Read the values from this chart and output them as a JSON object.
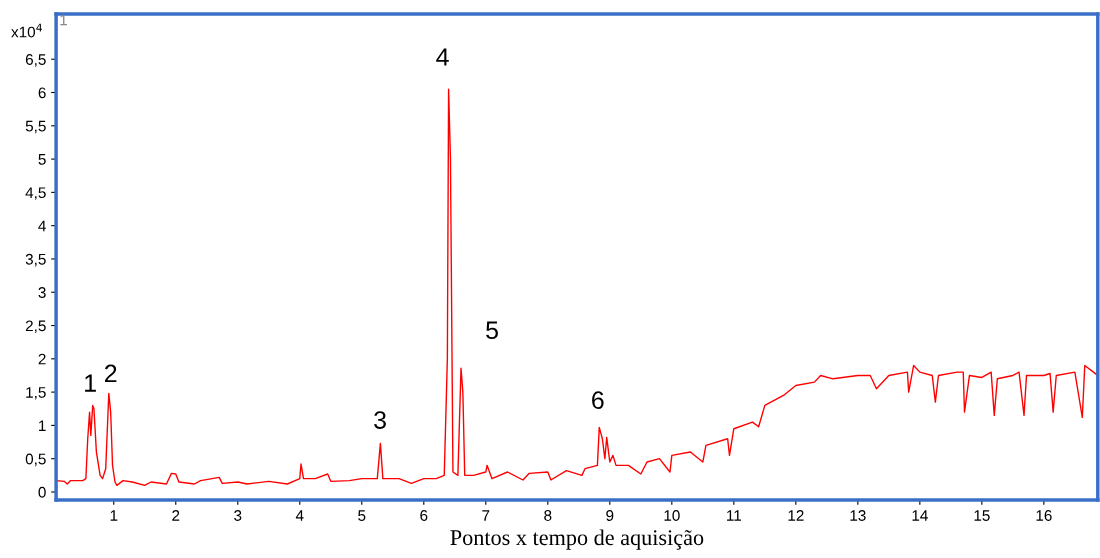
{
  "chart_data": {
    "type": "line",
    "xlabel": "Pontos x tempo de aquisição",
    "x": [
      0.08,
      0.2,
      0.25,
      0.3,
      0.5,
      0.55,
      0.58,
      0.61,
      0.63,
      0.66,
      0.68,
      0.72,
      0.78,
      0.82,
      0.87,
      0.92,
      0.95,
      0.98,
      1.02,
      1.05,
      1.15,
      1.3,
      1.5,
      1.6,
      1.85,
      1.93,
      2.0,
      2.05,
      2.3,
      2.4,
      2.7,
      2.75,
      3.0,
      3.15,
      3.5,
      3.8,
      4.0,
      4.02,
      4.06,
      4.25,
      4.45,
      4.5,
      4.8,
      5.0,
      5.25,
      5.3,
      5.34,
      5.6,
      5.8,
      6.0,
      6.2,
      6.33,
      6.38,
      6.4,
      6.43,
      6.47,
      6.55,
      6.6,
      6.63,
      6.66,
      6.8,
      7.0,
      7.02,
      7.1,
      7.35,
      7.6,
      7.7,
      8.0,
      8.05,
      8.3,
      8.55,
      8.6,
      8.8,
      8.83,
      8.88,
      8.92,
      8.95,
      9.0,
      9.05,
      9.1,
      9.3,
      9.5,
      9.6,
      9.8,
      9.97,
      10.0,
      10.3,
      10.5,
      10.55,
      10.9,
      10.93,
      11.0,
      11.3,
      11.4,
      11.5,
      11.8,
      12.0,
      12.3,
      12.4,
      12.6,
      13.0,
      13.2,
      13.3,
      13.5,
      13.8,
      13.82,
      13.9,
      14.0,
      14.2,
      14.25,
      14.3,
      14.6,
      14.7,
      14.72,
      14.8,
      15.0,
      15.15,
      15.2,
      15.25,
      15.5,
      15.6,
      15.68,
      15.72,
      16.0,
      16.1,
      16.15,
      16.2,
      16.5,
      16.62,
      16.66,
      16.8,
      16.87
    ],
    "series": [
      {
        "color": "#ff0000",
        "values": [
          0.17,
          0.16,
          0.12,
          0.17,
          0.17,
          0.2,
          0.8,
          1.2,
          0.85,
          1.3,
          1.25,
          0.6,
          0.25,
          0.2,
          0.35,
          1.48,
          1.2,
          0.4,
          0.15,
          0.1,
          0.17,
          0.15,
          0.1,
          0.15,
          0.12,
          0.28,
          0.27,
          0.15,
          0.12,
          0.17,
          0.22,
          0.13,
          0.15,
          0.12,
          0.16,
          0.12,
          0.2,
          0.42,
          0.2,
          0.2,
          0.27,
          0.16,
          0.17,
          0.2,
          0.2,
          0.73,
          0.2,
          0.2,
          0.13,
          0.2,
          0.2,
          0.25,
          2.0,
          6.05,
          5.0,
          0.3,
          0.25,
          1.86,
          1.5,
          0.25,
          0.25,
          0.3,
          0.4,
          0.2,
          0.3,
          0.18,
          0.28,
          0.3,
          0.18,
          0.32,
          0.25,
          0.35,
          0.4,
          0.97,
          0.8,
          0.5,
          0.82,
          0.45,
          0.55,
          0.4,
          0.4,
          0.27,
          0.45,
          0.5,
          0.3,
          0.55,
          0.6,
          0.45,
          0.7,
          0.8,
          0.55,
          0.95,
          1.05,
          0.98,
          1.3,
          1.45,
          1.6,
          1.65,
          1.75,
          1.7,
          1.75,
          1.75,
          1.55,
          1.75,
          1.8,
          1.5,
          1.9,
          1.8,
          1.75,
          1.35,
          1.75,
          1.8,
          1.8,
          1.2,
          1.75,
          1.72,
          1.8,
          1.15,
          1.7,
          1.75,
          1.8,
          1.15,
          1.75,
          1.75,
          1.78,
          1.2,
          1.75,
          1.8,
          1.12,
          1.9,
          1.8,
          1.75
        ]
      }
    ],
    "xlim": [
      0.07,
      16.87
    ],
    "ylim": [
      -0.12,
      7.18
    ],
    "xticks": [
      1,
      2,
      3,
      4,
      5,
      6,
      7,
      8,
      9,
      10,
      11,
      12,
      13,
      14,
      15,
      16
    ],
    "yticks": [
      0,
      {
        "value": 0.5,
        "label": "0,5"
      },
      1,
      {
        "value": 1.5,
        "label": "1,5"
      },
      2,
      {
        "value": 2.5,
        "label": "2,5"
      },
      3,
      {
        "value": 3.5,
        "label": "3,5"
      },
      4,
      {
        "value": 4.5,
        "label": "4,5"
      },
      5,
      {
        "value": 5.5,
        "label": "5,5"
      },
      6,
      {
        "value": 6.5,
        "label": "6,5"
      }
    ],
    "annotations": [
      "x10$^{4}$",
      "1",
      "1",
      "2",
      "3",
      "4",
      "5",
      "6"
    ],
    "line_style": "solid",
    "grid": false,
    "legend": false
  }
}
